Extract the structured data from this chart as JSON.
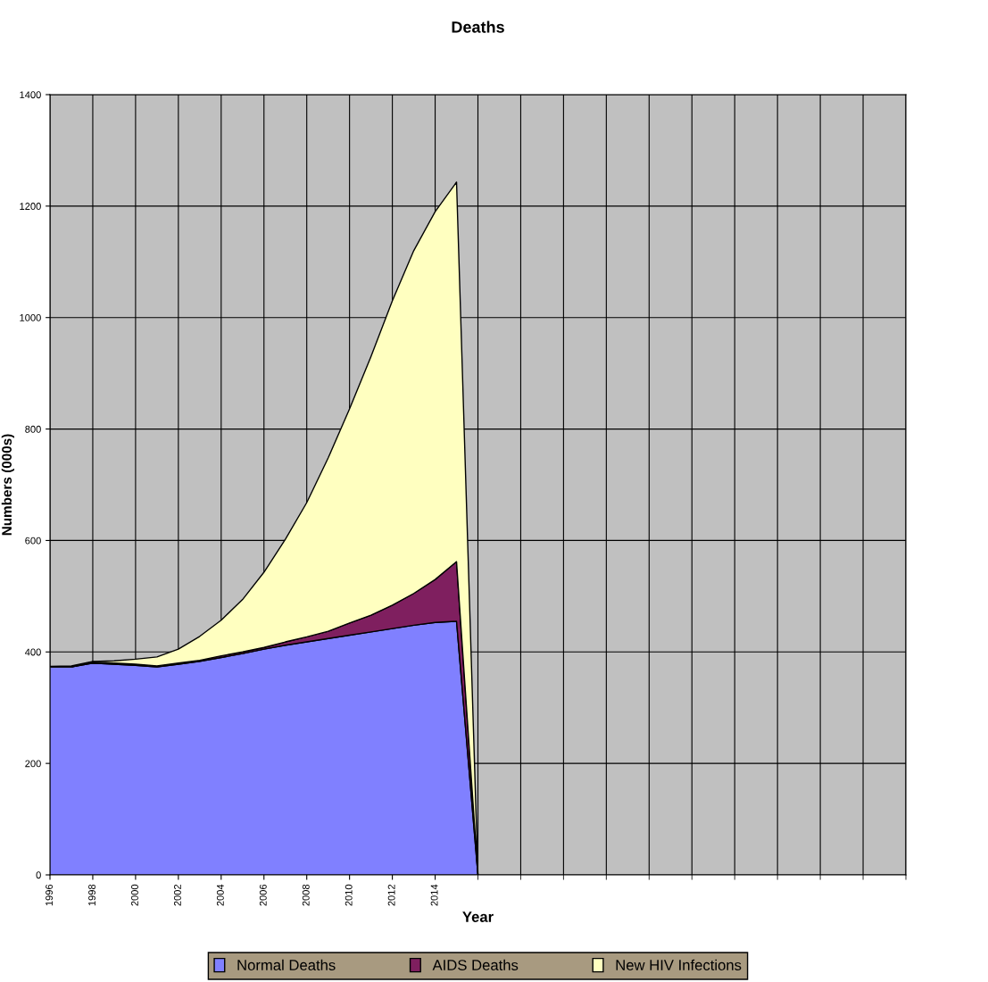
{
  "chart_data": {
    "type": "area",
    "stacked": true,
    "title": "Deaths",
    "xlabel": "Year",
    "ylabel": "Numbers (000s)",
    "categories": [
      "1996",
      null,
      "1998",
      null,
      "2000",
      null,
      "2002",
      null,
      "2004",
      null,
      "2006",
      null,
      "2008",
      null,
      "2010",
      null,
      "2012",
      null,
      "2014",
      null,
      null,
      null,
      null,
      null,
      null,
      null,
      null,
      null,
      null,
      null,
      null,
      null,
      null,
      null,
      null,
      null,
      null,
      null,
      null,
      null,
      null
    ],
    "series": [
      {
        "name": "Normal Deaths",
        "color": "#8080ff",
        "values": [
          373,
          373,
          380,
          378,
          376,
          373,
          378,
          383,
          390,
          397,
          405,
          412,
          418,
          424,
          430,
          436,
          442,
          448,
          453,
          455,
          0,
          null,
          null,
          null,
          null,
          null,
          null,
          null,
          null,
          null,
          null,
          null,
          null,
          null,
          null,
          null,
          null,
          null,
          null,
          null,
          null
        ]
      },
      {
        "name": "AIDS Deaths",
        "color": "#7f1f5f",
        "values": [
          0,
          0,
          2,
          2,
          2,
          2,
          2,
          2,
          3,
          3,
          3,
          6,
          9,
          13,
          22,
          30,
          42,
          57,
          77,
          107,
          0,
          null,
          null,
          null,
          null,
          null,
          null,
          null,
          null,
          null,
          null,
          null,
          null,
          null,
          null,
          null,
          null,
          null,
          null,
          null,
          null
        ]
      },
      {
        "name": "New HIV Infections",
        "color": "#ffffc0",
        "values": [
          1,
          2,
          1,
          4,
          9,
          16,
          25,
          43,
          64,
          94,
          135,
          184,
          241,
          311,
          384,
          464,
          546,
          615,
          660,
          681,
          0,
          null,
          null,
          null,
          null,
          null,
          null,
          null,
          null,
          null,
          null,
          null,
          null,
          null,
          null,
          null,
          null,
          null,
          null,
          null,
          null
        ]
      }
    ],
    "ylim": [
      0,
      1400
    ],
    "yticks": [
      0,
      200,
      400,
      600,
      800,
      1000,
      1200,
      1400
    ],
    "grid": true,
    "legend": "bottom"
  }
}
